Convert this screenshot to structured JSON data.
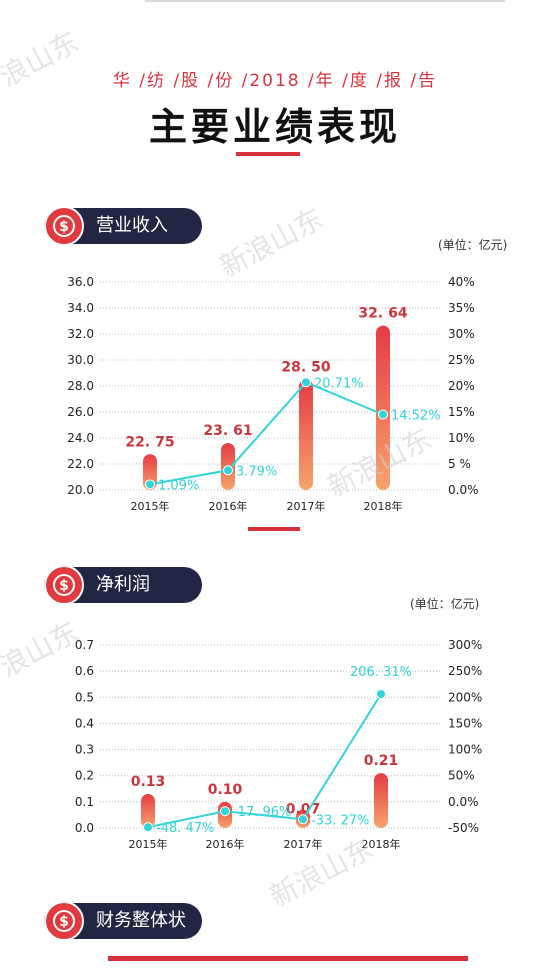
{
  "header": {
    "subtitle": "华 /纺 /股 /份 /2018 /年 /度 /报 /告",
    "title": "主要业绩表现"
  },
  "sections": {
    "revenue": {
      "label": "营业收入",
      "unit": "(单位：亿元)"
    },
    "profit": {
      "label": "净利润",
      "unit": "(单位：亿元)"
    },
    "finance": {
      "label": "财务整体状况"
    }
  },
  "watermarks": [
    "新浪山东",
    "浪山东",
    "新浪山东",
    "新浪山东"
  ],
  "colors": {
    "bar_top": "#e53b45",
    "bar_bottom": "#f7a46c",
    "line": "#31d5d9",
    "value_label": "#c9363e",
    "pill": "#232643",
    "accent": "#d7323b"
  },
  "icons": {
    "section_icon": "dollar-coin-icon"
  },
  "chart_data": [
    {
      "type": "bar",
      "categories": [
        "2015年",
        "2016年",
        "2017年",
        "2018年"
      ],
      "series": [
        {
          "values": [
            22.75,
            23.61,
            28.5,
            32.64
          ],
          "labels": [
            "22. 75",
            "23. 61",
            "28. 50",
            "32. 64"
          ]
        },
        {
          "type": "line",
          "axis": "right",
          "values": [
            1.09,
            3.79,
            20.71,
            14.52
          ],
          "labels": [
            "1.09%",
            "3.79%",
            "20.71%",
            "14.52%"
          ]
        }
      ],
      "ylim": [
        20,
        36
      ],
      "yticks": [
        "20.0",
        "22.0",
        "24.0",
        "26.0",
        "28.0",
        "30.0",
        "32.0",
        "34.0",
        "36.0"
      ],
      "y2lim": [
        0,
        40
      ],
      "y2ticks": [
        "0.0%",
        "5 %",
        "10%",
        "15%",
        "20%",
        "25%",
        "30%",
        "35%",
        "40%"
      ],
      "grid": true
    },
    {
      "type": "bar",
      "categories": [
        "2015年",
        "2016年",
        "2017年",
        "2018年"
      ],
      "series": [
        {
          "values": [
            0.13,
            0.1,
            0.07,
            0.21
          ],
          "labels": [
            "0.13",
            "0.10",
            "0.07",
            "0.21"
          ]
        },
        {
          "type": "line",
          "axis": "right",
          "values": [
            -48.47,
            -17.96,
            -33.27,
            206.31
          ],
          "labels": [
            "-48. 47%",
            "-17. 96%",
            "-33. 27%",
            "206. 31%"
          ]
        }
      ],
      "ylim": [
        0,
        0.7
      ],
      "yticks": [
        "0.0",
        "0.1",
        "0.2",
        "0.3",
        "0.4",
        "0.5",
        "0.6",
        "0.7"
      ],
      "y2lim": [
        -50,
        300
      ],
      "y2ticks": [
        "-50%",
        "0.0%",
        "50%",
        "100%",
        "150%",
        "200%",
        "250%",
        "300%"
      ],
      "grid": true
    }
  ]
}
